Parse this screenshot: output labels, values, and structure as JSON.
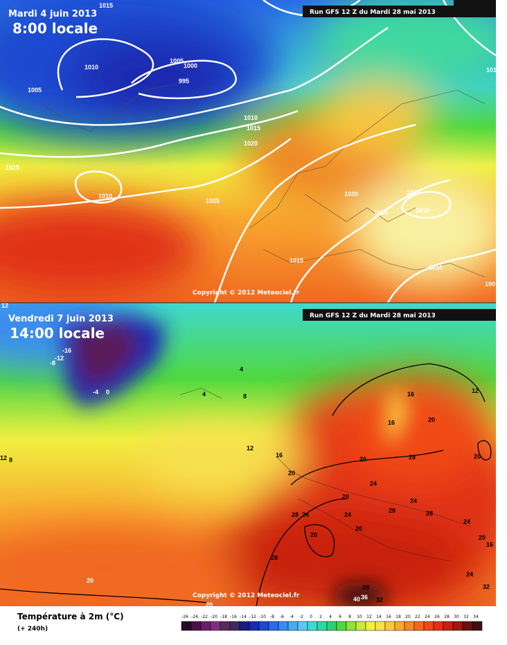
{
  "top_panel": {
    "date": "Mardi 4 juin 2013",
    "time": "8:00 locale",
    "run": "Run GFS 12 Z du Mardi 28 mai 2013",
    "copyright": "Copyright © 2012 Meteociel.fr",
    "isobar_labels": [
      "1015",
      "1010",
      "1005",
      "1005",
      "1000",
      "995",
      "1010",
      "1015",
      "1020",
      "1025",
      "1010",
      "1025",
      "1020",
      "1015",
      "1010",
      "1010",
      "1015",
      "1010",
      "100",
      "1010"
    ]
  },
  "bottom_panel": {
    "date": "Vendredi 7 juin 2013",
    "time": "14:00 locale",
    "run": "Run GFS 12 Z du Mardi 28 mai 2013",
    "copyright": "Copyright © 2012 Meteociel.fr",
    "temperature_labels": [
      "12",
      "-16",
      "-12",
      "-8",
      "-4",
      "0",
      "4",
      "4",
      "8",
      "12",
      "16",
      "20",
      "20",
      "16",
      "16",
      "20",
      "12",
      "20",
      "28",
      "24",
      "20",
      "28",
      "24",
      "24",
      "20",
      "28",
      "24",
      "28",
      "24",
      "20",
      "28",
      "20",
      "16",
      "24",
      "32",
      "28",
      "40",
      "36",
      "32",
      "20",
      "20",
      "12",
      "8"
    ]
  },
  "legend": {
    "title": "Température à 2m (°C)",
    "subtitle": "(+ 240h)",
    "ticks": [
      "-26",
      "-24",
      "-22",
      "-20",
      "-18",
      "-16",
      "-14",
      "-12",
      "-10",
      "-8",
      "-6",
      "-4",
      "-2",
      "0",
      "2",
      "4",
      "6",
      "8",
      "10",
      "12",
      "14",
      "16",
      "18",
      "20",
      "22",
      "24",
      "26",
      "28",
      "30",
      "32",
      "34"
    ],
    "colors": [
      "#2a0a2a",
      "#4a124a",
      "#6a1e6a",
      "#7e307e",
      "#5a2a5a",
      "#3a2a60",
      "#1a1a80",
      "#1a2ab0",
      "#1a4ad0",
      "#2a6ae8",
      "#3a8af0",
      "#4aaaf0",
      "#5ac8f0",
      "#40d8d0",
      "#30d8a0",
      "#30d070",
      "#50d840",
      "#90e040",
      "#c8e840",
      "#f0f040",
      "#f8e050",
      "#f8c840",
      "#f8a830",
      "#f08828",
      "#f06820",
      "#f04818",
      "#e03018",
      "#c82010",
      "#a01810",
      "#701010",
      "#401010"
    ]
  }
}
